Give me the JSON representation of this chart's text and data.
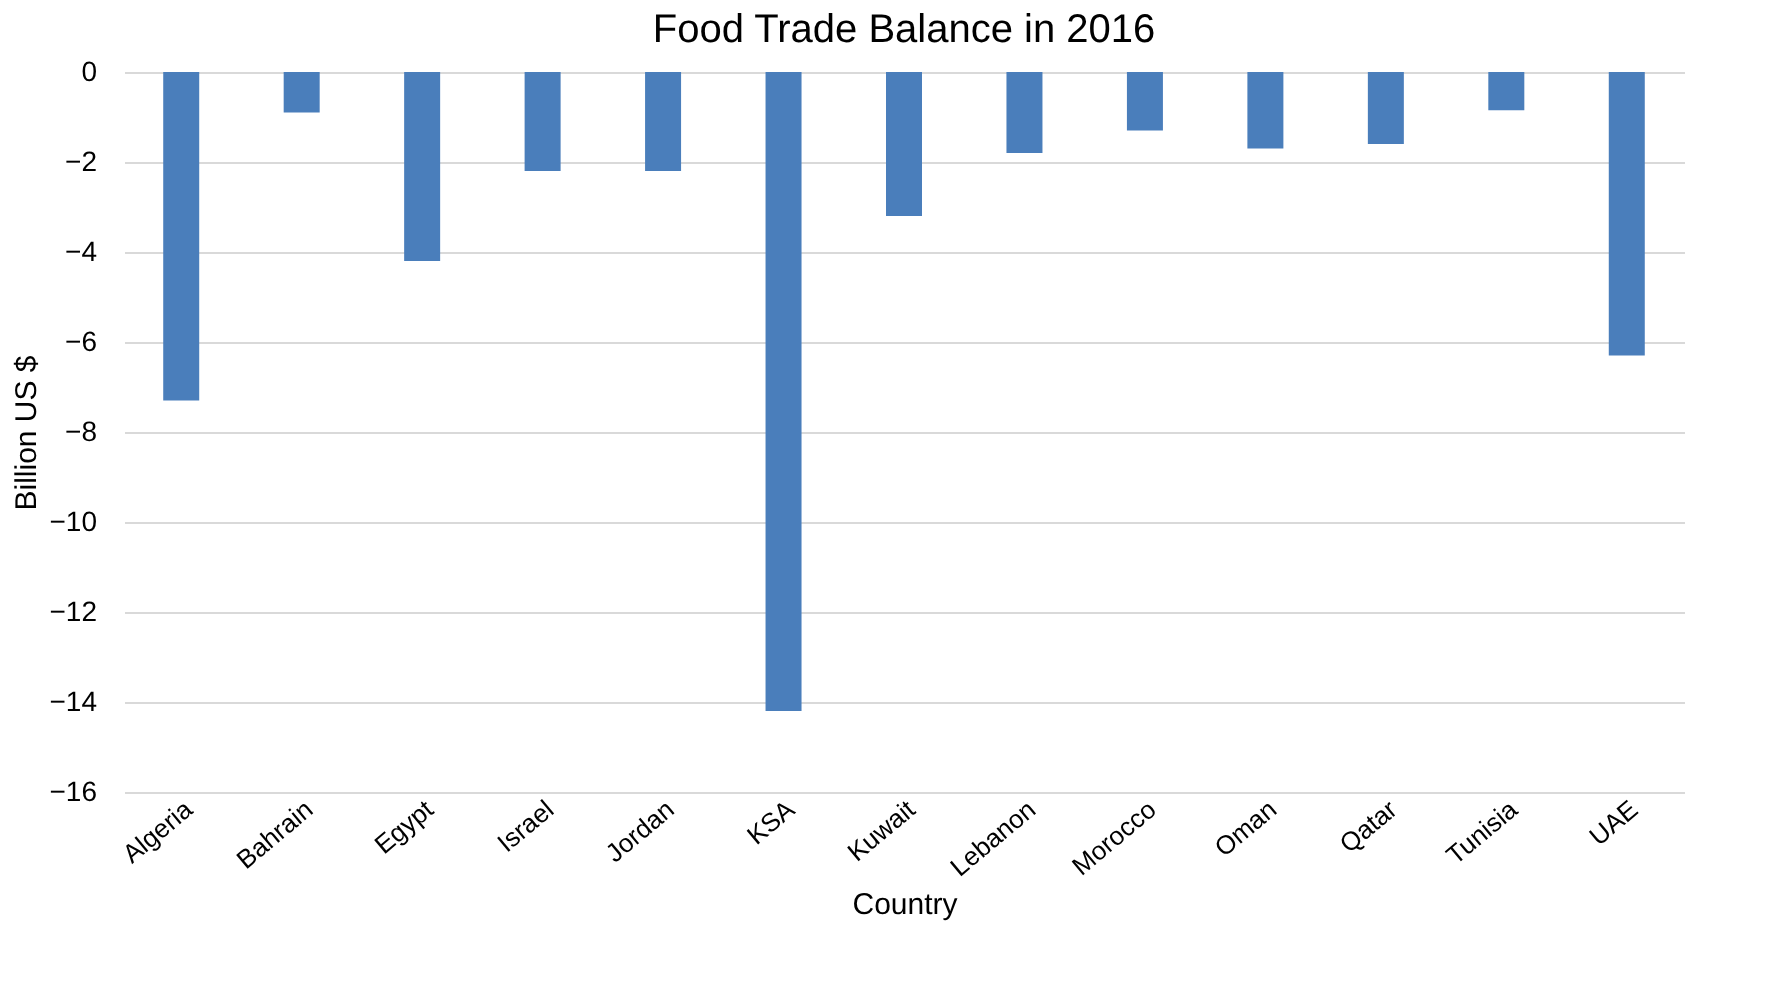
{
  "chart_data": {
    "type": "bar",
    "title": "Food Trade Balance in 2016",
    "xlabel": "Country",
    "ylabel": "Billion US $",
    "categories": [
      "Algeria",
      "Bahrain",
      "Egypt",
      "Israel",
      "Jordan",
      "KSA",
      "Kuwait",
      "Lebanon",
      "Morocco",
      "Oman",
      "Qatar",
      "Tunisia",
      "UAE"
    ],
    "values": [
      -7.3,
      -0.9,
      -4.2,
      -2.2,
      -2.2,
      -14.2,
      -3.2,
      -1.8,
      -1.3,
      -1.7,
      -1.6,
      -0.85,
      -6.3
    ],
    "color": "#4a7ebb",
    "ylim": [
      -16,
      0
    ],
    "yticks": [
      -16,
      -14,
      -12,
      -10,
      -8,
      -6,
      -4,
      -2,
      0
    ],
    "grid": "y"
  }
}
